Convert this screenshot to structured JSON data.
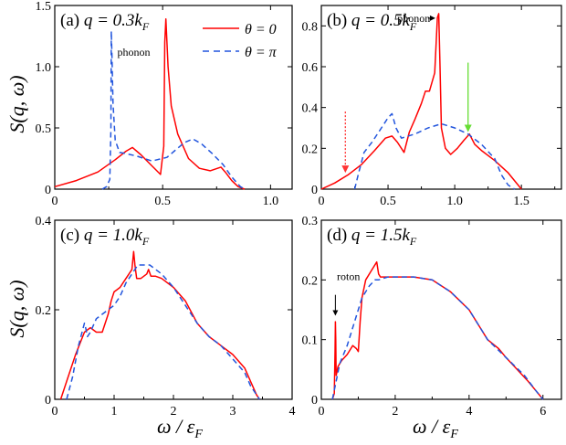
{
  "figure": {
    "y_axis_label": "S(q, ω)",
    "x_axis_label": "ω / ε",
    "x_axis_label_sub": "F"
  },
  "legend": {
    "solid_label": "θ = 0",
    "dashed_label": "θ = π"
  },
  "colors": {
    "solid": "#ff0000",
    "dashed": "#2255dd",
    "green_arrow": "#66dd33",
    "red_arrow": "#ff3333",
    "axis": "#000000"
  },
  "chart_data": [
    {
      "type": "line",
      "panel_label": "(a)",
      "title": "(a) q = 0.3k_F",
      "title_q": "q = 0.3k",
      "title_sub": "F",
      "xlim": [
        0,
        1.1
      ],
      "ylim": [
        0,
        1.5
      ],
      "x_ticks": [
        0,
        0.5,
        1.0
      ],
      "x_tick_labels": [
        "0",
        "0.5",
        "1.0"
      ],
      "y_ticks": [
        0.5,
        1.0,
        1.5
      ],
      "y_tick_labels": [
        "0.5",
        "1.0",
        "1.5"
      ],
      "annotations": [
        {
          "text": "phonon",
          "x": 0.29,
          "y": 1.09
        }
      ],
      "series": [
        {
          "name": "θ = 0",
          "style": "solid",
          "x": [
            0,
            0.1,
            0.2,
            0.28,
            0.33,
            0.36,
            0.4,
            0.45,
            0.49,
            0.505,
            0.51,
            0.515,
            0.525,
            0.54,
            0.57,
            0.62,
            0.67,
            0.72,
            0.77,
            0.79,
            0.82,
            0.85,
            0.88
          ],
          "y": [
            0.02,
            0.07,
            0.14,
            0.24,
            0.31,
            0.34,
            0.28,
            0.19,
            0.12,
            0.35,
            1.2,
            1.39,
            1.0,
            0.68,
            0.45,
            0.25,
            0.17,
            0.15,
            0.18,
            0.14,
            0.07,
            0.02,
            0.0
          ]
        },
        {
          "name": "θ = π",
          "style": "dashed",
          "x": [
            0.22,
            0.24,
            0.255,
            0.26,
            0.262,
            0.265,
            0.27,
            0.28,
            0.3,
            0.33,
            0.38,
            0.45,
            0.52,
            0.56,
            0.6,
            0.64,
            0.68,
            0.73,
            0.78,
            0.82,
            0.86,
            0.88
          ],
          "y": [
            0.0,
            0.02,
            0.08,
            0.5,
            1.29,
            1.1,
            0.7,
            0.4,
            0.3,
            0.29,
            0.27,
            0.23,
            0.26,
            0.32,
            0.38,
            0.41,
            0.37,
            0.29,
            0.2,
            0.1,
            0.02,
            0.0
          ]
        }
      ]
    },
    {
      "type": "line",
      "panel_label": "(b)",
      "title": "(b) q = 0.5k_F",
      "title_q": "q = 0.5k",
      "title_sub": "F",
      "xlim": [
        0,
        1.8
      ],
      "ylim": [
        0,
        0.9
      ],
      "x_ticks": [
        0,
        0.5,
        1.0,
        1.5
      ],
      "x_tick_labels": [
        "0",
        "0.5",
        "1.0",
        "1.5"
      ],
      "y_ticks": [
        0.2,
        0.4,
        0.6,
        0.8
      ],
      "y_tick_labels": [
        "0.2",
        "0.4",
        "0.6",
        "0.8"
      ],
      "annotations": [
        {
          "text": "phonon",
          "x": 0.57,
          "y": 0.82
        }
      ],
      "series": [
        {
          "name": "θ = 0",
          "style": "solid",
          "x": [
            0,
            0.1,
            0.2,
            0.3,
            0.4,
            0.48,
            0.53,
            0.57,
            0.62,
            0.66,
            0.7,
            0.75,
            0.78,
            0.81,
            0.85,
            0.87,
            0.88,
            0.89,
            0.9,
            0.93,
            0.97,
            1.02,
            1.07,
            1.11,
            1.15,
            1.2,
            1.3,
            1.4,
            1.5
          ],
          "y": [
            0.0,
            0.03,
            0.07,
            0.12,
            0.19,
            0.25,
            0.26,
            0.23,
            0.18,
            0.28,
            0.34,
            0.42,
            0.48,
            0.48,
            0.57,
            0.84,
            0.86,
            0.6,
            0.3,
            0.2,
            0.17,
            0.2,
            0.24,
            0.27,
            0.22,
            0.19,
            0.14,
            0.08,
            0.0
          ]
        },
        {
          "name": "θ = π",
          "style": "dashed",
          "x": [
            0.25,
            0.28,
            0.32,
            0.38,
            0.45,
            0.5,
            0.53,
            0.56,
            0.6,
            0.7,
            0.8,
            0.9,
            1.0,
            1.1,
            1.2,
            1.3,
            1.35,
            1.4,
            1.45
          ],
          "y": [
            0.0,
            0.08,
            0.18,
            0.23,
            0.3,
            0.35,
            0.37,
            0.3,
            0.25,
            0.27,
            0.3,
            0.32,
            0.3,
            0.27,
            0.22,
            0.15,
            0.07,
            0.02,
            0.0
          ]
        }
      ],
      "arrows": [
        {
          "color": "red_arrow",
          "style": "dotted",
          "x": 0.18,
          "y_from": 0.38,
          "y_to": 0.08
        },
        {
          "color": "green_arrow",
          "style": "solid",
          "x": 1.1,
          "y_from": 0.62,
          "y_to": 0.28
        }
      ]
    },
    {
      "type": "line",
      "panel_label": "(c)",
      "title": "(c) q = 1.0k_F",
      "title_q": "q = 1.0k",
      "title_sub": "F",
      "xlim": [
        0,
        4
      ],
      "ylim": [
        0,
        0.4
      ],
      "x_ticks": [
        0,
        1,
        2,
        3,
        4
      ],
      "x_tick_labels": [
        "0",
        "1",
        "2",
        "3",
        "4"
      ],
      "y_ticks": [
        0.2,
        0.4
      ],
      "y_tick_labels": [
        "0.2",
        "0.4"
      ],
      "series": [
        {
          "name": "θ = 0",
          "style": "solid",
          "x": [
            0.1,
            0.2,
            0.35,
            0.5,
            0.6,
            0.7,
            0.8,
            0.9,
            0.95,
            1.0,
            1.1,
            1.2,
            1.3,
            1.33,
            1.35,
            1.38,
            1.45,
            1.55,
            1.58,
            1.62,
            1.7,
            1.8,
            2.0,
            2.2,
            2.4,
            2.6,
            2.8,
            3.0,
            3.2,
            3.3,
            3.4,
            3.45
          ],
          "y": [
            0.0,
            0.04,
            0.1,
            0.15,
            0.16,
            0.15,
            0.15,
            0.19,
            0.22,
            0.24,
            0.25,
            0.27,
            0.29,
            0.33,
            0.3,
            0.27,
            0.27,
            0.28,
            0.29,
            0.275,
            0.275,
            0.27,
            0.25,
            0.22,
            0.17,
            0.14,
            0.12,
            0.1,
            0.07,
            0.04,
            0.01,
            0.0
          ]
        },
        {
          "name": "θ = π",
          "style": "dashed",
          "x": [
            0.2,
            0.3,
            0.4,
            0.5,
            0.52,
            0.55,
            0.6,
            0.7,
            0.8,
            0.9,
            1.0,
            1.1,
            1.2,
            1.3,
            1.4,
            1.5,
            1.6,
            1.8,
            2.0,
            2.2,
            2.4,
            2.6,
            2.8,
            3.0,
            3.2,
            3.3,
            3.4,
            3.45
          ],
          "y": [
            0.0,
            0.05,
            0.12,
            0.17,
            0.16,
            0.14,
            0.15,
            0.18,
            0.19,
            0.2,
            0.21,
            0.23,
            0.26,
            0.28,
            0.3,
            0.3,
            0.3,
            0.28,
            0.25,
            0.21,
            0.17,
            0.14,
            0.12,
            0.09,
            0.06,
            0.03,
            0.01,
            0.0
          ]
        }
      ]
    },
    {
      "type": "line",
      "panel_label": "(d)",
      "title": "(d) q = 1.5k_F",
      "title_q": "q = 1.5k",
      "title_sub": "F",
      "xlim": [
        0,
        6.5
      ],
      "ylim": [
        0,
        0.3
      ],
      "x_ticks": [
        0,
        2,
        4,
        6
      ],
      "x_tick_labels": [
        "0",
        "2",
        "4",
        "6"
      ],
      "y_ticks": [
        0.1,
        0.2,
        0.3
      ],
      "y_tick_labels": [
        "0.1",
        "0.2",
        "0.3"
      ],
      "annotations": [
        {
          "text": "roton",
          "x": 0.42,
          "y": 0.2
        }
      ],
      "series": [
        {
          "name": "θ = 0",
          "style": "solid",
          "x": [
            0.3,
            0.35,
            0.37,
            0.38,
            0.39,
            0.4,
            0.42,
            0.45,
            0.55,
            0.7,
            0.85,
            0.95,
            1.0,
            1.05,
            1.1,
            1.2,
            1.35,
            1.5,
            1.55,
            1.6,
            2.0,
            2.5,
            3.0,
            3.5,
            4.0,
            4.3,
            4.5,
            4.8,
            5.0,
            5.3,
            5.6,
            5.8,
            6.0
          ],
          "y": [
            0.0,
            0.01,
            0.08,
            0.13,
            0.1,
            0.04,
            0.045,
            0.055,
            0.065,
            0.075,
            0.09,
            0.085,
            0.08,
            0.13,
            0.17,
            0.2,
            0.215,
            0.23,
            0.21,
            0.205,
            0.205,
            0.205,
            0.2,
            0.18,
            0.15,
            0.12,
            0.1,
            0.085,
            0.07,
            0.05,
            0.03,
            0.015,
            0.0
          ]
        },
        {
          "name": "θ = π",
          "style": "dashed",
          "x": [
            0.3,
            0.4,
            0.5,
            0.7,
            0.9,
            1.1,
            1.3,
            1.45,
            1.55,
            1.8,
            2.0,
            2.5,
            3.0,
            3.5,
            4.0,
            4.3,
            4.5,
            5.0,
            5.5,
            5.8,
            6.0
          ],
          "y": [
            0.0,
            0.03,
            0.06,
            0.09,
            0.13,
            0.17,
            0.19,
            0.2,
            0.2,
            0.205,
            0.205,
            0.205,
            0.2,
            0.18,
            0.15,
            0.12,
            0.1,
            0.07,
            0.04,
            0.015,
            0.0
          ]
        }
      ]
    }
  ]
}
